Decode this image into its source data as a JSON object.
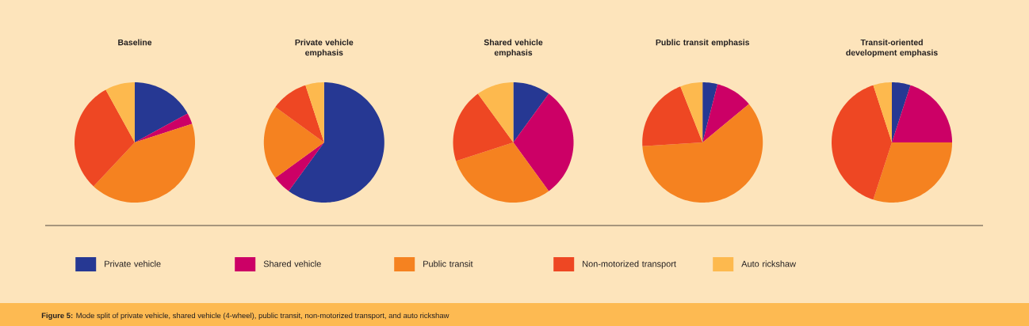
{
  "chart_data": [
    {
      "type": "pie",
      "title": "Baseline",
      "categories": [
        "Private vehicle",
        "Shared vehicle",
        "Public transit",
        "Non-motorized transport",
        "Auto rickshaw"
      ],
      "values": [
        17,
        3,
        42,
        30,
        8
      ],
      "colors": [
        "#263893",
        "#cc0066",
        "#f58220",
        "#ee4723",
        "#fdb94e"
      ],
      "legend": "bottom",
      "annotations": [
        "**Figure 5:** Mode split of private vehicle, shared vehicle (4-wheel), public transit, non-motorized transport, and auto rickshaw"
      ]
    },
    {
      "type": "pie",
      "title": "Private vehicle emphasis",
      "categories": [
        null,
        null,
        null,
        null,
        null
      ],
      "values": [
        60,
        5,
        20,
        10,
        5
      ],
      "colors": [
        "#263893",
        "#cc0066",
        "#f58220",
        "#ee4723",
        "#fdb94e"
      ]
    },
    {
      "type": "pie",
      "title": "Shared vehicle emphasis",
      "categories": [
        null,
        null,
        null,
        null,
        null
      ],
      "values": [
        10,
        30,
        30,
        20,
        10
      ],
      "colors": [
        "#263893",
        "#cc0066",
        "#f58220",
        "#ee4723",
        "#fdb94e"
      ]
    },
    {
      "type": "pie",
      "title": "Public transit emphasis",
      "categories": [
        null,
        null,
        null,
        null,
        null
      ],
      "values": [
        4,
        10,
        60,
        20,
        6
      ],
      "colors": [
        "#263893",
        "#cc0066",
        "#f58220",
        "#ee4723",
        "#fdb94e"
      ]
    },
    {
      "type": "pie",
      "title": "Transit-oriented development emphasis",
      "categories": [
        null,
        null,
        null,
        null,
        null
      ],
      "values": [
        5,
        20,
        30,
        40,
        5
      ],
      "colors": [
        "#263893",
        "#cc0066",
        "#f58220",
        "#ee4723",
        "#fdb94e"
      ]
    }
  ]
}
